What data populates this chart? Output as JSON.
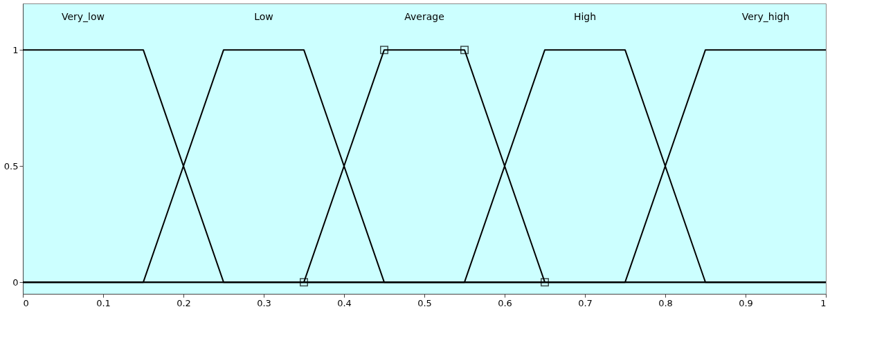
{
  "chart_data": {
    "type": "line",
    "xlim": [
      0,
      1
    ],
    "ylim": [
      -0.05,
      1.2
    ],
    "xticks": [
      0,
      0.1,
      0.2,
      0.3,
      0.4,
      0.5,
      0.6,
      0.7,
      0.8,
      0.9,
      1
    ],
    "yticks": [
      0,
      0.5,
      1
    ],
    "grid": false,
    "line_style": "solid",
    "series": [
      {
        "name": "Very_low",
        "color": "#000000",
        "marker": "none",
        "x": [
          0,
          0.15,
          0.25,
          1
        ],
        "values": [
          1,
          1,
          0,
          0
        ]
      },
      {
        "name": "Low",
        "color": "#000000",
        "marker": "none",
        "x": [
          0,
          0.15,
          0.25,
          0.35,
          0.45,
          1
        ],
        "values": [
          0,
          0,
          1,
          1,
          0,
          0
        ]
      },
      {
        "name": "Average",
        "color": "#000000",
        "marker": "square",
        "x": [
          0.35,
          0.45,
          0.55,
          0.65
        ],
        "values": [
          0,
          1,
          1,
          0
        ]
      },
      {
        "name": "High",
        "color": "#000000",
        "marker": "none",
        "x": [
          0,
          0.55,
          0.65,
          0.75,
          0.85,
          1
        ],
        "values": [
          0,
          0,
          1,
          1,
          0,
          0
        ]
      },
      {
        "name": "Very_high",
        "color": "#000000",
        "marker": "none",
        "x": [
          0,
          0.75,
          0.85,
          1
        ],
        "values": [
          0,
          0,
          1,
          1
        ]
      }
    ]
  }
}
